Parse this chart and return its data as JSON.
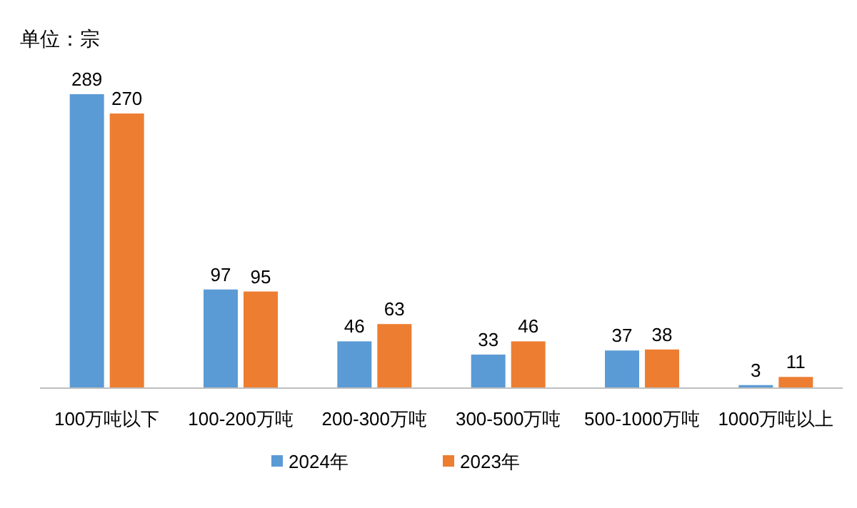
{
  "chart_data": {
    "type": "bar",
    "ylabel": "单位：宗",
    "categories": [
      "100万吨以下",
      "100-200万吨",
      "200-300万吨",
      "300-500万吨",
      "500-1000万吨",
      "1000万吨以上"
    ],
    "series": [
      {
        "name": "2024年",
        "color": "#5b9bd5",
        "values": [
          289,
          97,
          46,
          33,
          37,
          3
        ]
      },
      {
        "name": "2023年",
        "color": "#ed7d31",
        "values": [
          270,
          95,
          63,
          46,
          38,
          11
        ]
      }
    ],
    "data_labels": true,
    "legend": "bottom"
  }
}
